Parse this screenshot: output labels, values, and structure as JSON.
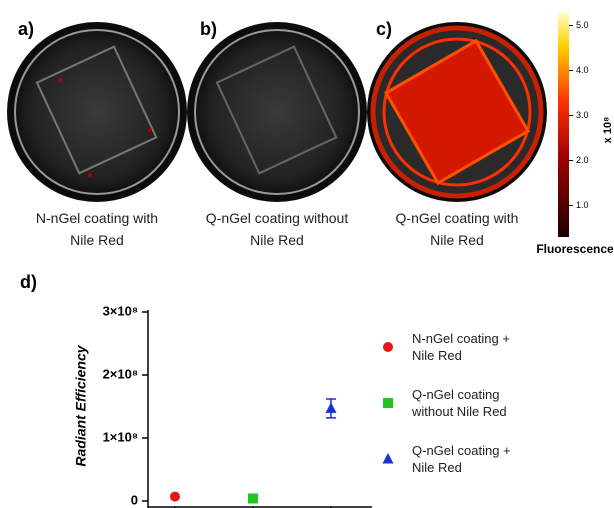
{
  "panels": [
    {
      "label": "a)",
      "caption": "N-nGel coating with Nile Red"
    },
    {
      "label": "b)",
      "caption": "Q-nGel coating without Nile Red"
    },
    {
      "label": "c)",
      "caption": "Q-nGel coating with Nile Red"
    }
  ],
  "colorbar": {
    "title": "Fluorescence",
    "unit": "x 10⁸",
    "lim": [
      0.3,
      5.3
    ],
    "ticks": [
      {
        "value": 1,
        "label": "1.0"
      },
      {
        "value": 2,
        "label": "2.0"
      },
      {
        "value": 3,
        "label": "3.0"
      },
      {
        "value": 4,
        "label": "4.0"
      },
      {
        "value": 5,
        "label": "5.0"
      }
    ]
  },
  "chart_data": {
    "type": "scatter",
    "panel_label": "d)",
    "y_label": "Radiant Efficiency",
    "categories": [
      null,
      null,
      null
    ],
    "ylim": [
      0,
      300000000
    ],
    "yticks": [
      0,
      {
        "value": 100000000,
        "label": "1×10⁸"
      },
      {
        "value": 200000000,
        "label": "2×10⁸"
      },
      {
        "value": 300000000,
        "label": "3×10⁸"
      }
    ],
    "legend": "right",
    "series": [
      {
        "name": "N-nGel coating + Nile Red",
        "color": "#e8141c",
        "marker": "circle",
        "values": [
          7000000,
          null,
          null
        ]
      },
      {
        "name": "Q-nGel coating without Nile Red",
        "color": "#1fc71f",
        "marker": "square",
        "values": [
          null,
          4000000,
          null
        ]
      },
      {
        "name": "Q-nGel coating + Nile Red",
        "color": "#1a2fd6",
        "marker": "triangle",
        "values": [
          null,
          null,
          147000000
        ],
        "errors": [
          null,
          null,
          15000000
        ]
      }
    ]
  }
}
